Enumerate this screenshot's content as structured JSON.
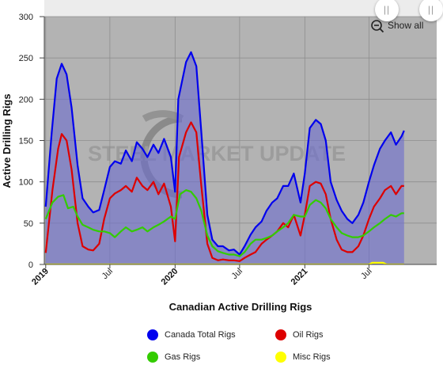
{
  "chart_data": {
    "type": "area",
    "xlabel": "Canadian Active Drilling Rigs",
    "ylabel": "Active Drilling Rigs",
    "ylim": [
      0,
      300
    ],
    "yticks": [
      0,
      50,
      100,
      150,
      200,
      250,
      300
    ],
    "xlim": [
      "2018-12-28",
      "2022-01-08"
    ],
    "xticks": [
      {
        "date": "2019-01-01",
        "label": "2019",
        "bold": true
      },
      {
        "date": "2019-07-01",
        "label": "Jul",
        "bold": false
      },
      {
        "date": "2020-01-01",
        "label": "2020",
        "bold": true
      },
      {
        "date": "2020-07-01",
        "label": "Jul",
        "bold": false
      },
      {
        "date": "2021-01-01",
        "label": "2021",
        "bold": true
      },
      {
        "date": "2021-07-01",
        "label": "Jul",
        "bold": false
      }
    ],
    "watermark": "STEEL MARKET UPDATE",
    "grid": true,
    "legend_placement": "bottom",
    "series": [
      {
        "name": "Canada Total Rigs",
        "color": "#0000ee",
        "fill": "rgba(110,110,205,0.62)",
        "points": [
          [
            "2019-01-01",
            70
          ],
          [
            "2019-01-18",
            160
          ],
          [
            "2019-02-01",
            225
          ],
          [
            "2019-02-15",
            243
          ],
          [
            "2019-03-01",
            230
          ],
          [
            "2019-03-15",
            190
          ],
          [
            "2019-04-01",
            120
          ],
          [
            "2019-04-15",
            80
          ],
          [
            "2019-05-01",
            70
          ],
          [
            "2019-05-15",
            63
          ],
          [
            "2019-06-01",
            66
          ],
          [
            "2019-06-15",
            90
          ],
          [
            "2019-07-01",
            118
          ],
          [
            "2019-07-15",
            125
          ],
          [
            "2019-08-01",
            122
          ],
          [
            "2019-08-15",
            138
          ],
          [
            "2019-09-01",
            125
          ],
          [
            "2019-09-15",
            148
          ],
          [
            "2019-10-01",
            140
          ],
          [
            "2019-10-15",
            130
          ],
          [
            "2019-11-01",
            145
          ],
          [
            "2019-11-15",
            135
          ],
          [
            "2019-12-01",
            152
          ],
          [
            "2019-12-20",
            130
          ],
          [
            "2020-01-01",
            88
          ],
          [
            "2020-01-10",
            200
          ],
          [
            "2020-02-01",
            245
          ],
          [
            "2020-02-15",
            257
          ],
          [
            "2020-03-01",
            240
          ],
          [
            "2020-03-15",
            160
          ],
          [
            "2020-04-01",
            60
          ],
          [
            "2020-04-15",
            30
          ],
          [
            "2020-05-01",
            22
          ],
          [
            "2020-05-15",
            22
          ],
          [
            "2020-06-01",
            17
          ],
          [
            "2020-06-15",
            18
          ],
          [
            "2020-07-01",
            12
          ],
          [
            "2020-07-15",
            22
          ],
          [
            "2020-08-01",
            36
          ],
          [
            "2020-08-15",
            45
          ],
          [
            "2020-09-01",
            52
          ],
          [
            "2020-09-15",
            65
          ],
          [
            "2020-10-01",
            75
          ],
          [
            "2020-10-15",
            80
          ],
          [
            "2020-11-01",
            95
          ],
          [
            "2020-11-15",
            95
          ],
          [
            "2020-12-01",
            110
          ],
          [
            "2020-12-20",
            75
          ],
          [
            "2021-01-01",
            110
          ],
          [
            "2021-01-15",
            165
          ],
          [
            "2021-02-01",
            175
          ],
          [
            "2021-02-15",
            170
          ],
          [
            "2021-03-01",
            150
          ],
          [
            "2021-03-15",
            100
          ],
          [
            "2021-04-01",
            78
          ],
          [
            "2021-04-15",
            65
          ],
          [
            "2021-05-01",
            55
          ],
          [
            "2021-05-15",
            50
          ],
          [
            "2021-06-01",
            60
          ],
          [
            "2021-06-15",
            75
          ],
          [
            "2021-07-01",
            100
          ],
          [
            "2021-07-15",
            120
          ],
          [
            "2021-08-01",
            140
          ],
          [
            "2021-08-15",
            150
          ],
          [
            "2021-09-01",
            160
          ],
          [
            "2021-09-15",
            145
          ],
          [
            "2021-10-01",
            155
          ],
          [
            "2021-10-08",
            162
          ]
        ]
      },
      {
        "name": "Oil Rigs",
        "color": "#dd0000",
        "fill": "none",
        "points": [
          [
            "2019-01-01",
            14
          ],
          [
            "2019-01-20",
            90
          ],
          [
            "2019-02-05",
            140
          ],
          [
            "2019-02-15",
            158
          ],
          [
            "2019-03-01",
            150
          ],
          [
            "2019-03-15",
            115
          ],
          [
            "2019-04-01",
            50
          ],
          [
            "2019-04-15",
            22
          ],
          [
            "2019-05-01",
            18
          ],
          [
            "2019-05-15",
            17
          ],
          [
            "2019-06-01",
            25
          ],
          [
            "2019-06-15",
            55
          ],
          [
            "2019-07-01",
            80
          ],
          [
            "2019-07-15",
            86
          ],
          [
            "2019-08-01",
            90
          ],
          [
            "2019-08-15",
            95
          ],
          [
            "2019-09-01",
            88
          ],
          [
            "2019-09-15",
            105
          ],
          [
            "2019-10-01",
            95
          ],
          [
            "2019-10-15",
            90
          ],
          [
            "2019-11-01",
            100
          ],
          [
            "2019-11-15",
            85
          ],
          [
            "2019-12-01",
            98
          ],
          [
            "2019-12-20",
            70
          ],
          [
            "2020-01-01",
            28
          ],
          [
            "2020-01-12",
            130
          ],
          [
            "2020-02-01",
            160
          ],
          [
            "2020-02-15",
            172
          ],
          [
            "2020-03-01",
            160
          ],
          [
            "2020-03-15",
            95
          ],
          [
            "2020-04-01",
            25
          ],
          [
            "2020-04-15",
            8
          ],
          [
            "2020-05-01",
            5
          ],
          [
            "2020-05-15",
            6
          ],
          [
            "2020-06-01",
            5
          ],
          [
            "2020-06-15",
            5
          ],
          [
            "2020-07-01",
            4
          ],
          [
            "2020-07-15",
            8
          ],
          [
            "2020-08-01",
            12
          ],
          [
            "2020-08-15",
            15
          ],
          [
            "2020-09-01",
            25
          ],
          [
            "2020-09-15",
            30
          ],
          [
            "2020-10-01",
            35
          ],
          [
            "2020-10-15",
            40
          ],
          [
            "2020-11-01",
            50
          ],
          [
            "2020-11-15",
            45
          ],
          [
            "2020-12-01",
            60
          ],
          [
            "2020-12-20",
            35
          ],
          [
            "2021-01-01",
            60
          ],
          [
            "2021-01-15",
            95
          ],
          [
            "2021-02-01",
            100
          ],
          [
            "2021-02-15",
            98
          ],
          [
            "2021-03-01",
            85
          ],
          [
            "2021-03-15",
            55
          ],
          [
            "2021-04-01",
            30
          ],
          [
            "2021-04-15",
            18
          ],
          [
            "2021-05-01",
            15
          ],
          [
            "2021-05-15",
            15
          ],
          [
            "2021-06-01",
            22
          ],
          [
            "2021-06-15",
            35
          ],
          [
            "2021-07-01",
            55
          ],
          [
            "2021-07-15",
            70
          ],
          [
            "2021-08-01",
            80
          ],
          [
            "2021-08-15",
            90
          ],
          [
            "2021-09-01",
            95
          ],
          [
            "2021-09-15",
            85
          ],
          [
            "2021-10-01",
            95
          ],
          [
            "2021-10-08",
            95
          ]
        ]
      },
      {
        "name": "Gas Rigs",
        "color": "#33cc00",
        "fill": "none",
        "points": [
          [
            "2019-01-01",
            55
          ],
          [
            "2019-01-20",
            75
          ],
          [
            "2019-02-05",
            82
          ],
          [
            "2019-02-20",
            84
          ],
          [
            "2019-03-05",
            68
          ],
          [
            "2019-03-20",
            70
          ],
          [
            "2019-04-01",
            58
          ],
          [
            "2019-04-15",
            48
          ],
          [
            "2019-05-01",
            45
          ],
          [
            "2019-05-15",
            42
          ],
          [
            "2019-06-01",
            40
          ],
          [
            "2019-06-15",
            40
          ],
          [
            "2019-07-01",
            38
          ],
          [
            "2019-07-15",
            33
          ],
          [
            "2019-08-01",
            40
          ],
          [
            "2019-08-15",
            45
          ],
          [
            "2019-09-01",
            40
          ],
          [
            "2019-09-15",
            42
          ],
          [
            "2019-10-01",
            45
          ],
          [
            "2019-10-15",
            40
          ],
          [
            "2019-11-01",
            45
          ],
          [
            "2019-11-15",
            48
          ],
          [
            "2019-12-01",
            52
          ],
          [
            "2019-12-20",
            58
          ],
          [
            "2020-01-01",
            55
          ],
          [
            "2020-01-15",
            85
          ],
          [
            "2020-02-01",
            90
          ],
          [
            "2020-02-15",
            88
          ],
          [
            "2020-03-01",
            80
          ],
          [
            "2020-03-15",
            65
          ],
          [
            "2020-04-01",
            35
          ],
          [
            "2020-04-15",
            22
          ],
          [
            "2020-05-01",
            16
          ],
          [
            "2020-05-15",
            14
          ],
          [
            "2020-06-01",
            12
          ],
          [
            "2020-06-15",
            12
          ],
          [
            "2020-07-01",
            10
          ],
          [
            "2020-07-15",
            15
          ],
          [
            "2020-08-01",
            25
          ],
          [
            "2020-08-15",
            30
          ],
          [
            "2020-09-01",
            30
          ],
          [
            "2020-09-15",
            32
          ],
          [
            "2020-10-01",
            35
          ],
          [
            "2020-10-15",
            40
          ],
          [
            "2020-11-01",
            45
          ],
          [
            "2020-11-15",
            50
          ],
          [
            "2020-12-01",
            60
          ],
          [
            "2020-12-20",
            58
          ],
          [
            "2021-01-01",
            58
          ],
          [
            "2021-01-15",
            72
          ],
          [
            "2021-02-01",
            78
          ],
          [
            "2021-02-15",
            75
          ],
          [
            "2021-03-01",
            68
          ],
          [
            "2021-03-15",
            55
          ],
          [
            "2021-04-01",
            45
          ],
          [
            "2021-04-15",
            38
          ],
          [
            "2021-05-01",
            35
          ],
          [
            "2021-05-15",
            33
          ],
          [
            "2021-06-01",
            33
          ],
          [
            "2021-06-15",
            35
          ],
          [
            "2021-07-01",
            40
          ],
          [
            "2021-07-15",
            45
          ],
          [
            "2021-08-01",
            50
          ],
          [
            "2021-08-15",
            55
          ],
          [
            "2021-09-01",
            60
          ],
          [
            "2021-09-15",
            58
          ],
          [
            "2021-10-01",
            62
          ],
          [
            "2021-10-08",
            62
          ]
        ]
      },
      {
        "name": "Misc Rigs",
        "color": "#ffff00",
        "fill": "none",
        "points": [
          [
            "2019-01-01",
            0
          ],
          [
            "2021-07-01",
            0
          ],
          [
            "2021-07-10",
            2
          ],
          [
            "2021-08-10",
            2
          ],
          [
            "2021-08-20",
            0
          ],
          [
            "2021-10-08",
            0
          ]
        ]
      }
    ]
  },
  "zoom": {
    "label": "Show all",
    "icon": "zoom-out-icon"
  },
  "navigator": {
    "handle_glyph": "||"
  }
}
